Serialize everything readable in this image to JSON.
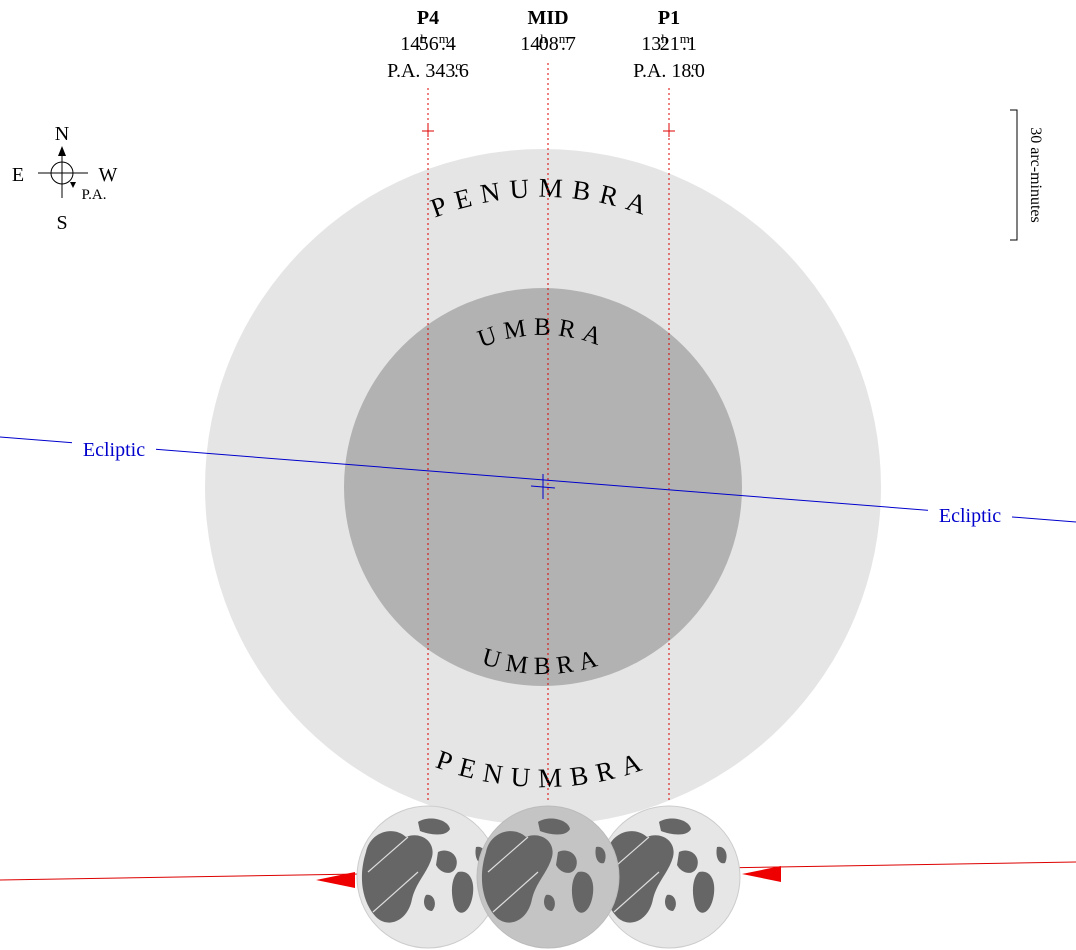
{
  "header": {
    "contacts": [
      {
        "label": "P4",
        "time": [
          "14",
          "h",
          "56",
          "m",
          ".4"
        ],
        "pa": [
          "P.A. 343",
          "o",
          ".6"
        ]
      },
      {
        "label": "MID",
        "time": [
          "14",
          "h",
          "08",
          "m",
          ".7"
        ]
      },
      {
        "label": "P1",
        "time": [
          "13",
          "h",
          "21",
          "m",
          ".1"
        ],
        "pa": [
          "P.A. 18",
          "o",
          ".0"
        ]
      }
    ]
  },
  "compass": {
    "north": "N",
    "east": "E",
    "west": "W",
    "south": "S",
    "pa": "P.A."
  },
  "scale": "30 arc-minutes",
  "shadow": {
    "penumbra_top": "PENUMBRA",
    "umbra_top": "UMBRA",
    "umbra_bottom": "UMBRA",
    "penumbra_bottom": "PENUMBRA"
  },
  "ecliptic": {
    "left": "Ecliptic",
    "right": "Ecliptic"
  }
}
